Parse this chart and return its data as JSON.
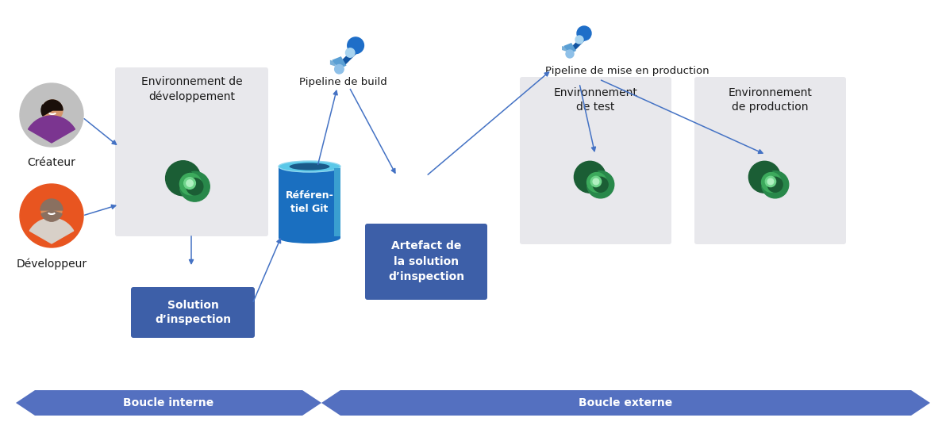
{
  "bg_color": "#ffffff",
  "arrow_color": "#4472c4",
  "box_blue_color": "#3d5fa8",
  "box_gray_color": "#e8e8ec",
  "text_dark": "#1a1a1a",
  "text_white": "#ffffff",
  "boucle_interne_label": "Boucle interne",
  "boucle_externe_label": "Boucle externe",
  "createur_label": "Créateur",
  "developpeur_label": "Développeur",
  "env_dev_label": "Environnement de\ndéveloppement",
  "solution_label": "Solution\nd’inspection",
  "pipeline_build_label": "Pipeline de build",
  "referentiel_label": "Référen-\ntiel Git",
  "artefact_label": "Artefact de\nla solution\nd’inspection",
  "pipeline_prod_label": "Pipeline de mise en production",
  "env_test_label": "Environnement\nde test",
  "env_prod_label": "Environnement\nde production",
  "boucle_color": "#5470c0"
}
